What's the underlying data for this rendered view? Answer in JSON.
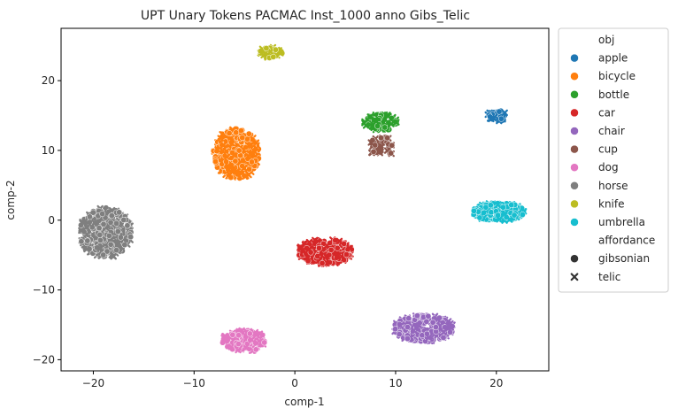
{
  "chart_data": {
    "type": "scatter",
    "title": "UPT Unary Tokens PACMAC Inst_1000 anno Gibs_Telic",
    "xlabel": "comp-1",
    "ylabel": "comp-2",
    "xlim": [
      -23.2,
      25.2
    ],
    "ylim": [
      -21.6,
      27.5
    ],
    "xticks": [
      -20,
      -10,
      0,
      10,
      20
    ],
    "yticks": [
      -20,
      -10,
      0,
      10,
      20
    ],
    "grid": false,
    "legend_position": "outside-right",
    "legend": {
      "hue_title": "obj",
      "style_title": "affordance",
      "style_entries": [
        {
          "label": "gibsonian",
          "marker": "circle"
        },
        {
          "label": "telic",
          "marker": "x"
        }
      ]
    },
    "series": [
      {
        "name": "apple",
        "color": "#1f77b4",
        "clusters": [
          {
            "cx": 20.0,
            "cy": 15.0,
            "rx": 1.0,
            "ry": 0.8,
            "n": 35,
            "telic_share": 0.5
          }
        ]
      },
      {
        "name": "bicycle",
        "color": "#ff7f0e",
        "clusters": [
          {
            "cx": -5.8,
            "cy": 9.5,
            "rx": 2.3,
            "ry": 3.6,
            "n": 400,
            "telic_share": 0.45
          }
        ]
      },
      {
        "name": "bottle",
        "color": "#2ca02c",
        "clusters": [
          {
            "cx": 8.6,
            "cy": 14.0,
            "rx": 1.7,
            "ry": 1.2,
            "n": 70,
            "telic_share": 0.5
          }
        ]
      },
      {
        "name": "car",
        "color": "#d62728",
        "clusters": [
          {
            "cx": 3.0,
            "cy": -4.5,
            "rx": 2.7,
            "ry": 1.8,
            "n": 260,
            "telic_share": 0.5
          }
        ]
      },
      {
        "name": "chair",
        "color": "#9467bd",
        "clusters": [
          {
            "cx": 12.8,
            "cy": -15.5,
            "rx": 3.0,
            "ry": 1.9,
            "n": 280,
            "telic_share": 0.3
          }
        ]
      },
      {
        "name": "cup",
        "color": "#8c564b",
        "clusters": [
          {
            "cx": 8.6,
            "cy": 10.5,
            "rx": 1.3,
            "ry": 1.5,
            "n": 45,
            "telic_share": 0.5
          }
        ]
      },
      {
        "name": "dog",
        "color": "#e377c2",
        "clusters": [
          {
            "cx": -5.0,
            "cy": -17.3,
            "rx": 2.2,
            "ry": 1.5,
            "n": 170,
            "telic_share": 0.5
          }
        ]
      },
      {
        "name": "horse",
        "color": "#7f7f7f",
        "clusters": [
          {
            "cx": -18.8,
            "cy": -1.8,
            "rx": 2.6,
            "ry": 3.6,
            "n": 400,
            "telic_share": 0.45
          }
        ]
      },
      {
        "name": "knife",
        "color": "#bcbd22",
        "clusters": [
          {
            "cx": -2.4,
            "cy": 24.0,
            "rx": 1.2,
            "ry": 0.8,
            "n": 45,
            "telic_share": 0.5
          }
        ]
      },
      {
        "name": "umbrella",
        "color": "#17becf",
        "clusters": [
          {
            "cx": 20.2,
            "cy": 1.2,
            "rx": 2.6,
            "ry": 1.3,
            "n": 320,
            "telic_share": 0.2
          }
        ]
      }
    ]
  }
}
